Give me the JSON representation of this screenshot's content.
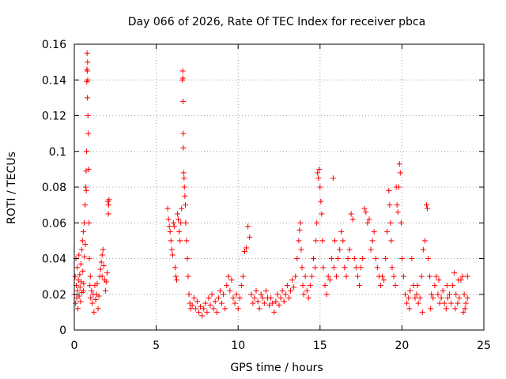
{
  "chart_data": {
    "type": "scatter",
    "title": "Day 066 of 2026, Rate Of TEC Index for receiver pbca",
    "xlabel": "GPS time / hours",
    "ylabel": "ROTI / TECUs",
    "xlim": [
      0,
      25
    ],
    "ylim": [
      0,
      0.16
    ],
    "xticks": [
      0,
      5,
      10,
      15,
      20,
      25
    ],
    "yticks": [
      0,
      0.02,
      0.04,
      0.06,
      0.08,
      0.1,
      0.12,
      0.14,
      0.16
    ],
    "xtick_labels": [
      "0",
      "5",
      "10",
      "15",
      "20",
      "25"
    ],
    "ytick_labels": [
      "0",
      "0.02",
      "0.04",
      "0.06",
      "0.08",
      "0.1",
      "0.12",
      "0.14",
      "0.16"
    ],
    "grid": true,
    "marker": "+",
    "color": "#ff0000",
    "series": [
      {
        "name": "ROTI",
        "points": [
          [
            0.0,
            0.02
          ],
          [
            0.05,
            0.03
          ],
          [
            0.08,
            0.015
          ],
          [
            0.1,
            0.04
          ],
          [
            0.12,
            0.025
          ],
          [
            0.15,
            0.018
          ],
          [
            0.18,
            0.035
          ],
          [
            0.2,
            0.022
          ],
          [
            0.22,
            0.012
          ],
          [
            0.25,
            0.028
          ],
          [
            0.28,
            0.042
          ],
          [
            0.3,
            0.019
          ],
          [
            0.33,
            0.031
          ],
          [
            0.35,
            0.024
          ],
          [
            0.38,
            0.016
          ],
          [
            0.4,
            0.037
          ],
          [
            0.42,
            0.027
          ],
          [
            0.45,
            0.045
          ],
          [
            0.47,
            0.021
          ],
          [
            0.5,
            0.05
          ],
          [
            0.52,
            0.033
          ],
          [
            0.55,
            0.055
          ],
          [
            0.57,
            0.026
          ],
          [
            0.6,
            0.06
          ],
          [
            0.62,
            0.041
          ],
          [
            0.65,
            0.07
          ],
          [
            0.67,
            0.048
          ],
          [
            0.7,
            0.08
          ],
          [
            0.72,
            0.089
          ],
          [
            0.73,
            0.078
          ],
          [
            0.75,
            0.1
          ],
          [
            0.76,
            0.139
          ],
          [
            0.77,
            0.146
          ],
          [
            0.78,
            0.155
          ],
          [
            0.79,
            0.145
          ],
          [
            0.8,
            0.13
          ],
          [
            0.81,
            0.15
          ],
          [
            0.82,
            0.14
          ],
          [
            0.83,
            0.12
          ],
          [
            0.85,
            0.11
          ],
          [
            0.87,
            0.09
          ],
          [
            0.9,
            0.06
          ],
          [
            0.92,
            0.04
          ],
          [
            0.95,
            0.025
          ],
          [
            0.98,
            0.03
          ],
          [
            1.0,
            0.018
          ],
          [
            1.05,
            0.022
          ],
          [
            1.1,
            0.015
          ],
          [
            1.15,
            0.02
          ],
          [
            1.2,
            0.01
          ],
          [
            1.25,
            0.025
          ],
          [
            1.3,
            0.017
          ],
          [
            1.35,
            0.02
          ],
          [
            1.4,
            0.026
          ],
          [
            1.45,
            0.012
          ],
          [
            1.5,
            0.019
          ],
          [
            1.55,
            0.03
          ],
          [
            1.6,
            0.034
          ],
          [
            1.65,
            0.038
          ],
          [
            1.7,
            0.042
          ],
          [
            1.75,
            0.045
          ],
          [
            1.8,
            0.036
          ],
          [
            1.85,
            0.028
          ],
          [
            1.9,
            0.022
          ],
          [
            1.95,
            0.027
          ],
          [
            2.0,
            0.032
          ],
          [
            2.05,
            0.072
          ],
          [
            2.08,
            0.065
          ],
          [
            2.1,
            0.07
          ],
          [
            2.12,
            0.073
          ],
          [
            0.55,
            0.022
          ],
          [
            1.7,
            0.03
          ],
          [
            5.7,
            0.068
          ],
          [
            5.75,
            0.062
          ],
          [
            5.8,
            0.058
          ],
          [
            5.85,
            0.055
          ],
          [
            5.9,
            0.05
          ],
          [
            5.95,
            0.045
          ],
          [
            6.0,
            0.042
          ],
          [
            6.05,
            0.06
          ],
          [
            6.1,
            0.058
          ],
          [
            6.15,
            0.035
          ],
          [
            6.2,
            0.03
          ],
          [
            6.25,
            0.028
          ],
          [
            6.3,
            0.065
          ],
          [
            6.35,
            0.062
          ],
          [
            6.4,
            0.055
          ],
          [
            6.45,
            0.05
          ],
          [
            6.5,
            0.06
          ],
          [
            6.55,
            0.068
          ],
          [
            6.6,
            0.14
          ],
          [
            6.62,
            0.145
          ],
          [
            6.63,
            0.141
          ],
          [
            6.64,
            0.128
          ],
          [
            6.65,
            0.11
          ],
          [
            6.66,
            0.102
          ],
          [
            6.67,
            0.088
          ],
          [
            6.7,
            0.085
          ],
          [
            6.72,
            0.08
          ],
          [
            6.75,
            0.075
          ],
          [
            6.78,
            0.07
          ],
          [
            6.8,
            0.06
          ],
          [
            6.85,
            0.05
          ],
          [
            6.9,
            0.04
          ],
          [
            6.95,
            0.03
          ],
          [
            7.0,
            0.02
          ],
          [
            7.05,
            0.015
          ],
          [
            7.1,
            0.012
          ],
          [
            7.2,
            0.014
          ],
          [
            7.3,
            0.018
          ],
          [
            7.4,
            0.012
          ],
          [
            7.5,
            0.016
          ],
          [
            7.6,
            0.01
          ],
          [
            7.7,
            0.013
          ],
          [
            7.8,
            0.008
          ],
          [
            7.9,
            0.012
          ],
          [
            8.0,
            0.015
          ],
          [
            8.1,
            0.01
          ],
          [
            8.2,
            0.018
          ],
          [
            8.3,
            0.014
          ],
          [
            8.4,
            0.02
          ],
          [
            8.5,
            0.012
          ],
          [
            8.6,
            0.016
          ],
          [
            8.7,
            0.01
          ],
          [
            8.8,
            0.018
          ],
          [
            8.9,
            0.022
          ],
          [
            9.0,
            0.015
          ],
          [
            9.1,
            0.02
          ],
          [
            9.2,
            0.012
          ],
          [
            9.3,
            0.025
          ],
          [
            9.4,
            0.03
          ],
          [
            9.5,
            0.022
          ],
          [
            9.6,
            0.028
          ],
          [
            9.7,
            0.018
          ],
          [
            9.8,
            0.015
          ],
          [
            9.9,
            0.02
          ],
          [
            10.0,
            0.012
          ],
          [
            10.1,
            0.018
          ],
          [
            10.2,
            0.025
          ],
          [
            10.3,
            0.03
          ],
          [
            10.4,
            0.044
          ],
          [
            10.5,
            0.046
          ],
          [
            10.6,
            0.058
          ],
          [
            10.7,
            0.052
          ],
          [
            10.8,
            0.02
          ],
          [
            10.9,
            0.015
          ],
          [
            11.0,
            0.018
          ],
          [
            11.1,
            0.022
          ],
          [
            11.2,
            0.016
          ],
          [
            11.3,
            0.012
          ],
          [
            11.4,
            0.02
          ],
          [
            11.5,
            0.018
          ],
          [
            11.6,
            0.015
          ],
          [
            11.7,
            0.022
          ],
          [
            11.8,
            0.018
          ],
          [
            11.9,
            0.014
          ],
          [
            12.0,
            0.018
          ],
          [
            12.1,
            0.015
          ],
          [
            12.2,
            0.01
          ],
          [
            12.3,
            0.016
          ],
          [
            12.4,
            0.02
          ],
          [
            12.5,
            0.014
          ],
          [
            12.6,
            0.018
          ],
          [
            12.7,
            0.022
          ],
          [
            12.8,
            0.016
          ],
          [
            12.9,
            0.02
          ],
          [
            13.0,
            0.025
          ],
          [
            13.1,
            0.018
          ],
          [
            13.2,
            0.022
          ],
          [
            13.3,
            0.028
          ],
          [
            13.4,
            0.024
          ],
          [
            13.5,
            0.03
          ],
          [
            13.6,
            0.04
          ],
          [
            13.7,
            0.05
          ],
          [
            13.75,
            0.056
          ],
          [
            13.8,
            0.06
          ],
          [
            13.85,
            0.045
          ],
          [
            13.9,
            0.035
          ],
          [
            13.95,
            0.025
          ],
          [
            14.0,
            0.02
          ],
          [
            14.1,
            0.03
          ],
          [
            14.2,
            0.022
          ],
          [
            14.3,
            0.018
          ],
          [
            14.4,
            0.025
          ],
          [
            14.5,
            0.03
          ],
          [
            14.6,
            0.04
          ],
          [
            14.7,
            0.035
          ],
          [
            14.75,
            0.05
          ],
          [
            14.8,
            0.06
          ],
          [
            14.85,
            0.088
          ],
          [
            14.9,
            0.085
          ],
          [
            14.95,
            0.09
          ],
          [
            15.0,
            0.08
          ],
          [
            15.05,
            0.072
          ],
          [
            15.1,
            0.065
          ],
          [
            15.15,
            0.05
          ],
          [
            15.2,
            0.035
          ],
          [
            15.3,
            0.025
          ],
          [
            15.4,
            0.02
          ],
          [
            15.5,
            0.03
          ],
          [
            15.6,
            0.028
          ],
          [
            15.7,
            0.04
          ],
          [
            15.8,
            0.085
          ],
          [
            15.85,
            0.035
          ],
          [
            15.9,
            0.05
          ],
          [
            16.0,
            0.03
          ],
          [
            16.1,
            0.04
          ],
          [
            16.2,
            0.045
          ],
          [
            16.3,
            0.055
          ],
          [
            16.4,
            0.05
          ],
          [
            16.5,
            0.035
          ],
          [
            16.6,
            0.03
          ],
          [
            16.7,
            0.04
          ],
          [
            16.8,
            0.045
          ],
          [
            16.9,
            0.065
          ],
          [
            17.0,
            0.062
          ],
          [
            17.1,
            0.04
          ],
          [
            17.2,
            0.035
          ],
          [
            17.3,
            0.03
          ],
          [
            17.4,
            0.025
          ],
          [
            17.5,
            0.035
          ],
          [
            17.6,
            0.04
          ],
          [
            17.7,
            0.068
          ],
          [
            17.8,
            0.066
          ],
          [
            17.9,
            0.06
          ],
          [
            18.0,
            0.062
          ],
          [
            18.1,
            0.045
          ],
          [
            18.2,
            0.05
          ],
          [
            18.3,
            0.055
          ],
          [
            18.4,
            0.04
          ],
          [
            18.5,
            0.035
          ],
          [
            18.6,
            0.03
          ],
          [
            18.7,
            0.025
          ],
          [
            18.8,
            0.03
          ],
          [
            18.9,
            0.028
          ],
          [
            19.0,
            0.04
          ],
          [
            19.1,
            0.055
          ],
          [
            19.2,
            0.078
          ],
          [
            19.25,
            0.07
          ],
          [
            19.3,
            0.06
          ],
          [
            19.35,
            0.05
          ],
          [
            19.4,
            0.035
          ],
          [
            19.5,
            0.03
          ],
          [
            19.6,
            0.025
          ],
          [
            19.65,
            0.08
          ],
          [
            19.7,
            0.07
          ],
          [
            19.75,
            0.066
          ],
          [
            19.8,
            0.08
          ],
          [
            19.85,
            0.093
          ],
          [
            19.9,
            0.088
          ],
          [
            19.95,
            0.06
          ],
          [
            20.0,
            0.04
          ],
          [
            20.1,
            0.03
          ],
          [
            20.2,
            0.02
          ],
          [
            20.3,
            0.015
          ],
          [
            20.4,
            0.018
          ],
          [
            20.5,
            0.022
          ],
          [
            20.6,
            0.04
          ],
          [
            20.7,
            0.025
          ],
          [
            20.8,
            0.018
          ],
          [
            20.9,
            0.02
          ],
          [
            21.0,
            0.015
          ],
          [
            21.1,
            0.018
          ],
          [
            21.2,
            0.03
          ],
          [
            21.3,
            0.045
          ],
          [
            21.4,
            0.05
          ],
          [
            21.5,
            0.07
          ],
          [
            21.55,
            0.068
          ],
          [
            21.6,
            0.04
          ],
          [
            21.7,
            0.03
          ],
          [
            21.8,
            0.02
          ],
          [
            21.9,
            0.018
          ],
          [
            22.0,
            0.025
          ],
          [
            22.1,
            0.03
          ],
          [
            22.2,
            0.02
          ],
          [
            22.3,
            0.015
          ],
          [
            22.4,
            0.018
          ],
          [
            22.5,
            0.022
          ],
          [
            22.6,
            0.015
          ],
          [
            22.7,
            0.012
          ],
          [
            22.8,
            0.018
          ],
          [
            22.9,
            0.02
          ],
          [
            23.0,
            0.015
          ],
          [
            23.1,
            0.025
          ],
          [
            23.2,
            0.032
          ],
          [
            23.3,
            0.02
          ],
          [
            23.4,
            0.015
          ],
          [
            23.5,
            0.018
          ],
          [
            23.6,
            0.028
          ],
          [
            23.7,
            0.03
          ],
          [
            23.8,
            0.02
          ],
          [
            23.9,
            0.015
          ],
          [
            24.0,
            0.018
          ],
          [
            24.0,
            0.03
          ],
          [
            23.85,
            0.012
          ],
          [
            23.75,
            0.01
          ],
          [
            20.45,
            0.012
          ],
          [
            20.95,
            0.025
          ],
          [
            21.25,
            0.01
          ],
          [
            21.75,
            0.012
          ],
          [
            22.25,
            0.028
          ],
          [
            22.75,
            0.025
          ],
          [
            23.25,
            0.012
          ],
          [
            23.45,
            0.028
          ]
        ]
      }
    ]
  }
}
